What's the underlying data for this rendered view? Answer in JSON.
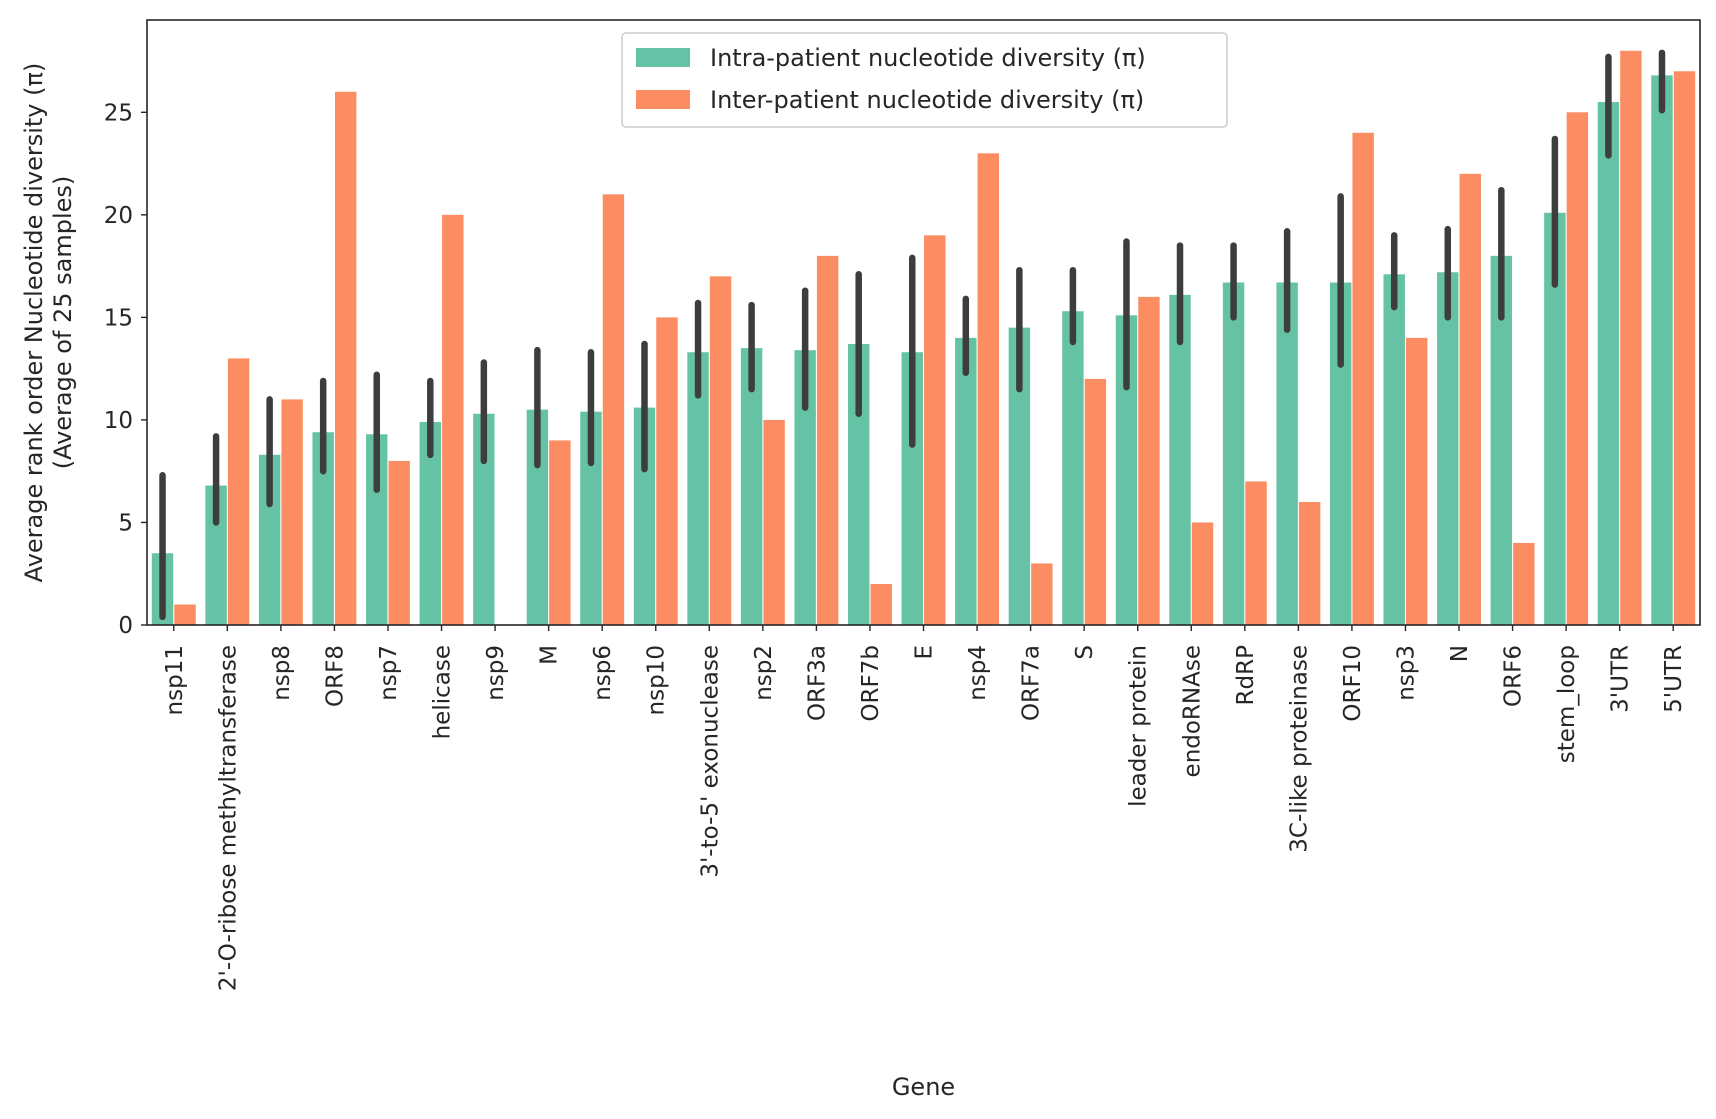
{
  "chart_data": {
    "type": "bar",
    "xlabel": "Gene",
    "ylabel": [
      "Average rank order Nucleotide diversity (π)",
      "(Average of 25 samples)"
    ],
    "ylim": [
      0,
      29.5
    ],
    "yticks": [
      0,
      5,
      10,
      15,
      20,
      25
    ],
    "grid": false,
    "legend_position": "top-center",
    "categories": [
      "nsp11",
      "2'-O-ribose methyltransferase",
      "nsp8",
      "ORF8",
      "nsp7",
      "helicase",
      "nsp9",
      "M",
      "nsp6",
      "nsp10",
      "3'-to-5' exonuclease",
      "nsp2",
      "ORF3a",
      "ORF7b",
      "E",
      "nsp4",
      "ORF7a",
      "S",
      "leader protein",
      "endoRNAse",
      "RdRP",
      "3C-like proteinase",
      "ORF10",
      "nsp3",
      "N",
      "ORF6",
      "stem_loop",
      "3'UTR",
      "5'UTR"
    ],
    "series": [
      {
        "name": "Intra-patient nucleotide diversity (π)",
        "color": "#66c2a5",
        "values": [
          3.5,
          6.8,
          8.3,
          9.4,
          9.3,
          9.9,
          10.3,
          10.5,
          10.4,
          10.6,
          13.3,
          13.5,
          13.4,
          13.7,
          13.3,
          14.0,
          14.5,
          15.3,
          15.1,
          16.1,
          16.7,
          16.7,
          16.7,
          17.1,
          17.2,
          18.0,
          20.1,
          25.5,
          26.8
        ],
        "error_low": [
          0.4,
          5.0,
          5.9,
          7.5,
          6.6,
          8.3,
          8.0,
          7.8,
          7.9,
          7.6,
          11.2,
          11.5,
          10.6,
          10.3,
          8.8,
          12.3,
          11.5,
          13.8,
          11.6,
          13.8,
          15.0,
          14.4,
          12.7,
          15.5,
          15.0,
          15.0,
          16.6,
          22.9,
          25.1
        ],
        "error_high": [
          7.3,
          9.2,
          11.0,
          11.9,
          12.2,
          11.9,
          12.8,
          13.4,
          13.3,
          13.7,
          15.7,
          15.6,
          16.3,
          17.1,
          17.9,
          15.9,
          17.3,
          17.3,
          18.7,
          18.5,
          18.5,
          19.2,
          20.9,
          19.0,
          19.3,
          21.2,
          23.7,
          27.7,
          27.9
        ]
      },
      {
        "name": "Inter-patient nucleotide diversity (π)",
        "color": "#fc8d62",
        "values": [
          1,
          13,
          11,
          26,
          8,
          20,
          0,
          9,
          21,
          15,
          17,
          10,
          18,
          2,
          19,
          23,
          3,
          12,
          16,
          5,
          7,
          6,
          24,
          14,
          22,
          4,
          25,
          28,
          27
        ]
      }
    ]
  }
}
